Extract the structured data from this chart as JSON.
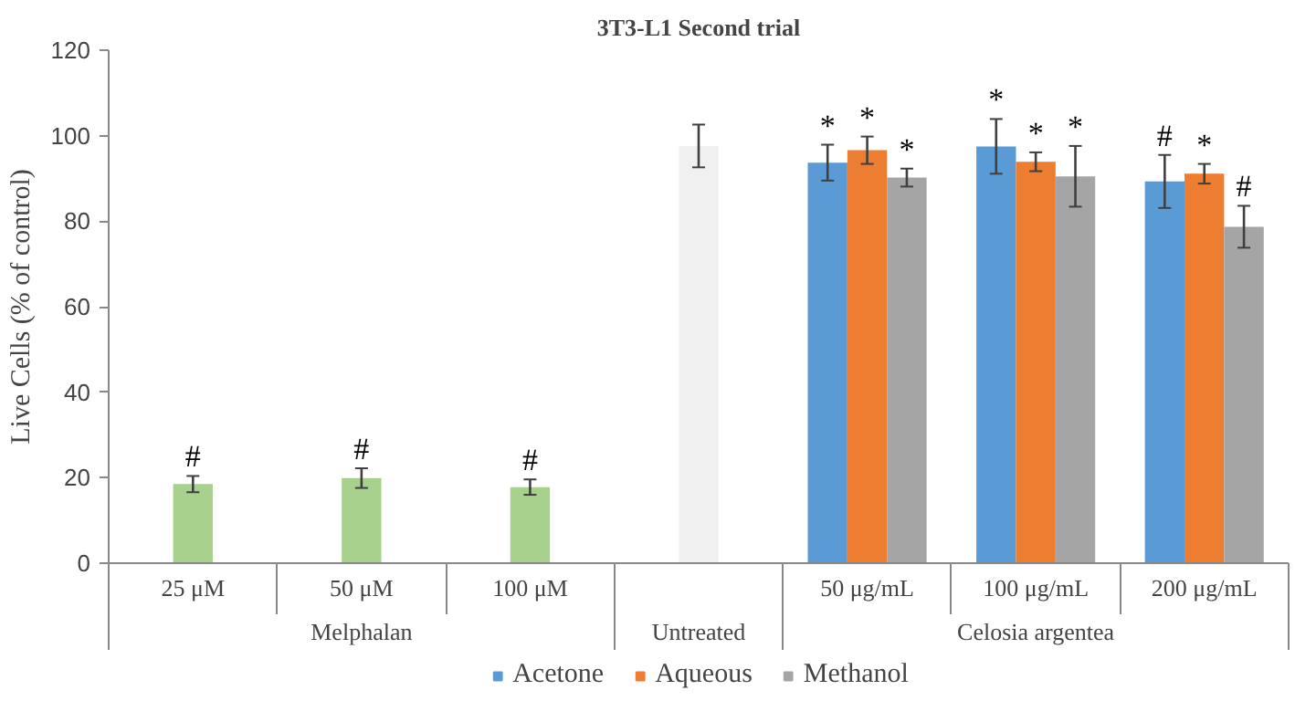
{
  "chart_data": {
    "type": "bar",
    "title": "3T3-L1 Second trial",
    "ylabel": "Live Cells (% of control)",
    "categories": [
      "25 μM",
      "50 μM",
      "100 μM",
      null,
      "50 μg/mL",
      "100 μg/mL",
      "200 μg/mL"
    ],
    "annotations": [
      "Melphalan",
      "Untreated",
      "Celosia argentea"
    ],
    "series": [
      {
        "color": "#a9d18e",
        "values": [
          18.5,
          19.9,
          17.8,
          null,
          null,
          null,
          null
        ],
        "errors": [
          1.9,
          2.3,
          1.8,
          null,
          null,
          null,
          null
        ],
        "value_labels": [
          "#",
          "#",
          "#",
          null,
          null,
          null,
          null
        ]
      },
      {
        "color": "#f0f0f0",
        "values": [
          null,
          null,
          null,
          97.6,
          null,
          null,
          null
        ],
        "errors": [
          null,
          null,
          null,
          5,
          null,
          null,
          null
        ],
        "value_labels": [
          null,
          null,
          null,
          null,
          null,
          null,
          null
        ]
      },
      {
        "name": "Acetone",
        "color": "#5b9bd5",
        "values": [
          null,
          null,
          null,
          null,
          93.7,
          97.5,
          89.3
        ],
        "errors": [
          null,
          null,
          null,
          null,
          4.2,
          6.4,
          6.2
        ],
        "value_labels": [
          null,
          null,
          null,
          null,
          "*",
          "*",
          "#"
        ]
      },
      {
        "name": "Aqueous",
        "color": "#ed7d31",
        "values": [
          null,
          null,
          null,
          null,
          96.6,
          93.9,
          91.1
        ],
        "errors": [
          null,
          null,
          null,
          null,
          3.2,
          2.2,
          2.3
        ],
        "value_labels": [
          null,
          null,
          null,
          null,
          "*",
          "*",
          "*"
        ]
      },
      {
        "name": "Methanol",
        "color": "#a5a5a5",
        "values": [
          null,
          null,
          null,
          null,
          90.2,
          90.5,
          78.7
        ],
        "errors": [
          null,
          null,
          null,
          null,
          2.1,
          7.1,
          4.9
        ],
        "value_labels": [
          null,
          null,
          null,
          null,
          "*",
          "*",
          "#"
        ]
      }
    ],
    "ylim": [
      0,
      120
    ],
    "yticks": [
      0,
      20,
      40,
      60,
      80,
      100,
      120
    ],
    "grid": false,
    "legend": "bottom"
  }
}
